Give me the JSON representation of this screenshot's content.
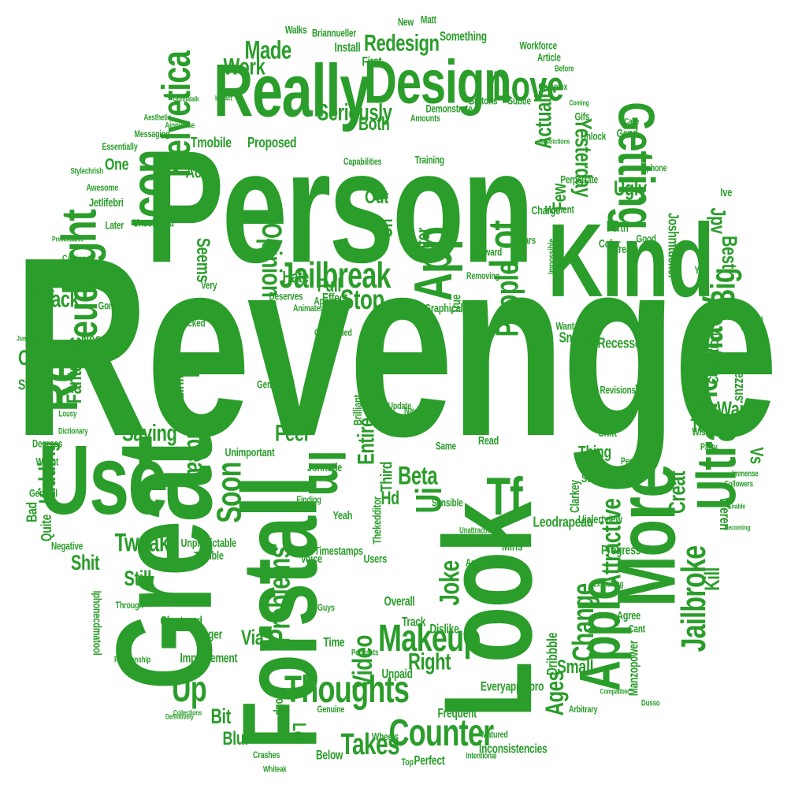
{
  "colors": {
    "word": "#2a9d2a",
    "background": "#ffffff"
  },
  "words": [
    {
      "text": "Revenge",
      "size": 240,
      "rot": 0
    },
    {
      "text": "Person",
      "size": 150,
      "rot": 0
    },
    {
      "text": "Great",
      "size": 128,
      "rot": -90
    },
    {
      "text": "Look",
      "size": 118,
      "rot": -90
    },
    {
      "text": "Forstall",
      "size": 100,
      "rot": -90
    },
    {
      "text": "Kind",
      "size": 98,
      "rot": 0
    },
    {
      "text": "Use",
      "size": 92,
      "rot": 0
    },
    {
      "text": "More",
      "size": 78,
      "rot": -90
    },
    {
      "text": "Really",
      "size": 70,
      "rot": 0
    },
    {
      "text": "Design",
      "size": 58,
      "rot": 0
    },
    {
      "text": "Apple",
      "size": 54,
      "rot": -90
    },
    {
      "text": "Ultra",
      "size": 52,
      "rot": -90
    },
    {
      "text": "Getting",
      "size": 48,
      "rot": 90
    },
    {
      "text": "App",
      "size": 50,
      "rot": -90
    },
    {
      "text": "Re",
      "size": 52,
      "rot": -90
    },
    {
      "text": "Icon",
      "size": 50,
      "rot": -90
    },
    {
      "text": "Im",
      "size": 50,
      "rot": 90
    },
    {
      "text": "Tf",
      "size": 50,
      "rot": 0
    },
    {
      "text": "Light",
      "size": 46,
      "rot": -90
    },
    {
      "text": "Lot",
      "size": 40,
      "rot": -90
    },
    {
      "text": "Love",
      "size": 40,
      "rot": 0
    },
    {
      "text": "Helvetica",
      "size": 38,
      "rot": -90
    },
    {
      "text": "Neue",
      "size": 40,
      "rot": -90
    },
    {
      "text": "Makeup",
      "size": 36,
      "rot": 0
    },
    {
      "text": "Thoughts",
      "size": 36,
      "rot": 0
    },
    {
      "text": "Counter",
      "size": 36,
      "rot": 0
    },
    {
      "text": "Jailbreak",
      "size": 34,
      "rot": 0
    },
    {
      "text": "Macy",
      "size": 36,
      "rot": -90
    },
    {
      "text": "Here",
      "size": 32,
      "rot": -90
    },
    {
      "text": "Big",
      "size": 32,
      "rot": -90
    },
    {
      "text": "Jailbroke",
      "size": 32,
      "rot": -90
    },
    {
      "text": "Ii",
      "size": 40,
      "rot": -90
    },
    {
      "text": "Ui",
      "size": 34,
      "rot": -90
    },
    {
      "text": "Soon",
      "size": 32,
      "rot": -90
    },
    {
      "text": "Up",
      "size": 34,
      "rot": 0
    },
    {
      "text": "People",
      "size": 30,
      "rot": -90
    },
    {
      "text": "Change",
      "size": 28,
      "rot": -90
    },
    {
      "text": "Problems",
      "size": 28,
      "rot": -90
    },
    {
      "text": "Takes",
      "size": 28,
      "rot": 0
    },
    {
      "text": "Joke",
      "size": 26,
      "rot": -90
    },
    {
      "text": "Video",
      "size": 26,
      "rot": -90
    },
    {
      "text": "Stop",
      "size": 26,
      "rot": 0
    },
    {
      "text": "Opinion",
      "size": 26,
      "rot": 90
    },
    {
      "text": "Attractive",
      "size": 26,
      "rot": -90
    },
    {
      "text": "Tweak",
      "size": 24,
      "rot": 0
    },
    {
      "text": "Idea",
      "size": 26,
      "rot": 90
    },
    {
      "text": "Ages",
      "size": 24,
      "rot": -90
    },
    {
      "text": "Beta",
      "size": 24,
      "rot": 0
    },
    {
      "text": "Right",
      "size": 22,
      "rot": 0
    },
    {
      "text": "Made",
      "size": 24,
      "rot": 0
    },
    {
      "text": "Yesterday",
      "size": 22,
      "rot": 90
    },
    {
      "text": "Actually",
      "size": 22,
      "rot": -90
    },
    {
      "text": "Saying",
      "size": 22,
      "rot": 0
    },
    {
      "text": "Kidding",
      "size": 22,
      "rot": -90
    },
    {
      "text": "Fantastic",
      "size": 20,
      "rot": -90
    },
    {
      "text": "Seriously",
      "size": 22,
      "rot": 0
    },
    {
      "text": "Back",
      "size": 22,
      "rot": 0
    },
    {
      "text": "Redesign",
      "size": 22,
      "rot": 0
    },
    {
      "text": "Work",
      "size": 22,
      "rot": 0
    },
    {
      "text": "Now",
      "size": 22,
      "rot": -90
    },
    {
      "text": "Feel",
      "size": 22,
      "rot": 0
    },
    {
      "text": "Creat",
      "size": 22,
      "rot": -90
    },
    {
      "text": "Best",
      "size": 20,
      "rot": 90
    },
    {
      "text": "Entire",
      "size": 22,
      "rot": -90
    },
    {
      "text": "Still",
      "size": 20,
      "rot": 0
    },
    {
      "text": "Bit",
      "size": 20,
      "rot": 0
    },
    {
      "text": "Via",
      "size": 20,
      "rot": 0
    },
    {
      "text": "Kill",
      "size": 20,
      "rot": -90
    },
    {
      "text": "Wait",
      "size": 20,
      "rot": 0
    },
    {
      "text": "Ugly",
      "size": 20,
      "rot": 0
    },
    {
      "text": "Jpv",
      "size": 20,
      "rot": 90
    },
    {
      "text": "Omg",
      "size": 20,
      "rot": 0
    },
    {
      "text": "Shit",
      "size": 20,
      "rot": 0
    },
    {
      "text": "Few",
      "size": 18,
      "rot": -90
    },
    {
      "text": "Full",
      "size": 18,
      "rot": 0
    },
    {
      "text": "Out",
      "size": 18,
      "rot": 0
    },
    {
      "text": "Filter",
      "size": 18,
      "rot": -90
    },
    {
      "text": "Seems",
      "size": 18,
      "rot": 90
    },
    {
      "text": "Both",
      "size": 18,
      "rot": 0
    },
    {
      "text": "Lol",
      "size": 18,
      "rot": 90
    },
    {
      "text": "Hd",
      "size": 18,
      "rot": 0
    },
    {
      "text": "Small",
      "size": 18,
      "rot": 0
    },
    {
      "text": "Blur",
      "size": 18,
      "rot": 0
    },
    {
      "text": "Vs",
      "size": 18,
      "rot": 90
    },
    {
      "text": "Oh",
      "size": 18,
      "rot": -90
    },
    {
      "text": "Link",
      "size": 16,
      "rot": -90
    },
    {
      "text": "Turn",
      "size": 18,
      "rot": 0
    },
    {
      "text": "Thing",
      "size": 16,
      "rot": 0
    },
    {
      "text": "Found",
      "size": 16,
      "rot": -90
    },
    {
      "text": "Hate",
      "size": 16,
      "rot": 0
    },
    {
      "text": "Went",
      "size": 16,
      "rot": 0
    },
    {
      "text": "Third",
      "size": 16,
      "rot": -90
    },
    {
      "text": "One",
      "size": 16,
      "rot": 0
    },
    {
      "text": "Act",
      "size": 16,
      "rot": 0
    },
    {
      "text": "Store",
      "size": 14,
      "rot": 0
    },
    {
      "text": "Quite",
      "size": 14,
      "rot": -90
    },
    {
      "text": "Bad",
      "size": 14,
      "rot": -90
    },
    {
      "text": "Neon",
      "size": 14,
      "rot": 0
    },
    {
      "text": "Proposed",
      "size": 14,
      "rot": 0
    },
    {
      "text": "Tmobile",
      "size": 14,
      "rot": 0
    },
    {
      "text": "Dribbble",
      "size": 14,
      "rot": -90
    },
    {
      "text": "Recessed",
      "size": 14,
      "rot": 0
    },
    {
      "text": "Smarter",
      "size": 14,
      "rot": 0
    },
    {
      "text": "Collection",
      "size": 14,
      "rot": -90
    },
    {
      "text": "Weren",
      "size": 14,
      "rot": 90
    },
    {
      "text": "Steezzus",
      "size": 14,
      "rot": 90
    },
    {
      "text": "Leodrapeau",
      "size": 14,
      "rot": 0
    },
    {
      "text": "Yep",
      "size": 14,
      "rot": 0
    },
    {
      "text": "Group",
      "size": 12,
      "rot": 90
    },
    {
      "text": "Below",
      "size": 12,
      "rot": 0
    },
    {
      "text": "Perfect",
      "size": 12,
      "rot": 0
    },
    {
      "text": "Frequent",
      "size": 12,
      "rot": 0
    },
    {
      "text": "Inconsistencies",
      "size": 12,
      "rot": 0
    },
    {
      "text": "Everyapplepro",
      "size": 12,
      "rot": 0
    },
    {
      "text": "Manzopower",
      "size": 12,
      "rot": -90
    },
    {
      "text": "Clarkey",
      "size": 12,
      "rot": -90
    },
    {
      "text": "Mins",
      "size": 12,
      "rot": 0
    },
    {
      "text": "Overall",
      "size": 12,
      "rot": 0
    },
    {
      "text": "Track",
      "size": 12,
      "rot": 0
    },
    {
      "text": "Dislike",
      "size": 12,
      "rot": 0
    },
    {
      "text": "Time",
      "size": 12,
      "rot": 0
    },
    {
      "text": "Unpaid",
      "size": 12,
      "rot": 0
    },
    {
      "text": "Improvement",
      "size": 12,
      "rot": 0
    },
    {
      "text": "Bigger",
      "size": 12,
      "rot": 0
    },
    {
      "text": "Clustered",
      "size": 12,
      "rot": 0
    },
    {
      "text": "Timestamps",
      "size": 11,
      "rot": 0
    },
    {
      "text": "Voice",
      "size": 11,
      "rot": 0
    },
    {
      "text": "Unpredictable",
      "size": 11,
      "rot": 0
    },
    {
      "text": "Terrible",
      "size": 11,
      "rot": 0
    },
    {
      "text": "Unimportant",
      "size": 11,
      "rot": 0
    },
    {
      "text": "Jonnotie",
      "size": 11,
      "rot": 0
    },
    {
      "text": "Yeah",
      "size": 11,
      "rot": 0
    },
    {
      "text": "Thekedditor",
      "size": 11,
      "rot": -90
    },
    {
      "text": "Iphonecdmatool",
      "size": 11,
      "rot": 90
    },
    {
      "text": "Negative",
      "size": 10,
      "rot": 0
    },
    {
      "text": "General",
      "size": 10,
      "rot": 0
    },
    {
      "text": "Wasnt",
      "size": 10,
      "rot": 0
    },
    {
      "text": "Degrees",
      "size": 10,
      "rot": 0
    },
    {
      "text": "Gonna",
      "size": 10,
      "rot": 0
    },
    {
      "text": "Leave",
      "size": 10,
      "rot": 0
    },
    {
      "text": "Hacked",
      "size": 10,
      "rot": 0
    },
    {
      "text": "Finally",
      "size": 10,
      "rot": 0
    },
    {
      "text": "Very",
      "size": 10,
      "rot": 0
    },
    {
      "text": "Carrier",
      "size": 9,
      "rot": 0
    },
    {
      "text": "Jetlifebri",
      "size": 11,
      "rot": 0
    },
    {
      "text": "Later",
      "size": 10,
      "rot": 0
    },
    {
      "text": "Unsolicited",
      "size": 10,
      "rot": 0
    },
    {
      "text": "Awesome",
      "size": 9,
      "rot": 0
    },
    {
      "text": "Stylechrish",
      "size": 8,
      "rot": 0
    },
    {
      "text": "Essentially",
      "size": 9,
      "rot": 0
    },
    {
      "text": "Messaging",
      "size": 9,
      "rot": 0
    },
    {
      "text": "Aesthetic",
      "size": 8,
      "rot": 0
    },
    {
      "text": "Aiomoose",
      "size": 8,
      "rot": 0
    },
    {
      "text": "Walks",
      "size": 10,
      "rot": 0
    },
    {
      "text": "Briannueller",
      "size": 10,
      "rot": 0
    },
    {
      "text": "Install",
      "size": 12,
      "rot": 0
    },
    {
      "text": "New",
      "size": 10,
      "rot": 0
    },
    {
      "text": "Matt",
      "size": 10,
      "rot": 0
    },
    {
      "text": "Something",
      "size": 12,
      "rot": 0
    },
    {
      "text": "Workforce",
      "size": 10,
      "rot": 0
    },
    {
      "text": "Article",
      "size": 10,
      "rot": 0
    },
    {
      "text": "First",
      "size": 12,
      "rot": 0
    },
    {
      "text": "Buttons",
      "size": 10,
      "rot": 0
    },
    {
      "text": "Subtle",
      "size": 10,
      "rot": 0
    },
    {
      "text": "Demonstrate",
      "size": 10,
      "rot": 0
    },
    {
      "text": "Amounts",
      "size": 9,
      "rot": 0
    },
    {
      "text": "Complex",
      "size": 9,
      "rot": 0
    },
    {
      "text": "Gifs",
      "size": 10,
      "rot": 0
    },
    {
      "text": "Unlock",
      "size": 10,
      "rot": 0
    },
    {
      "text": "Gend",
      "size": 11,
      "rot": 0
    },
    {
      "text": "Perpetrate",
      "size": 10,
      "rot": 0
    },
    {
      "text": "Iphone",
      "size": 9,
      "rot": 0
    },
    {
      "text": "Training",
      "size": 10,
      "rot": 0
    },
    {
      "text": "Capabilities",
      "size": 9,
      "rot": 0
    },
    {
      "text": "Charge",
      "size": 11,
      "rot": 0
    },
    {
      "text": "Moment",
      "size": 10,
      "rot": 0
    },
    {
      "text": "Forth",
      "size": 11,
      "rot": 0
    },
    {
      "text": "Bars",
      "size": 10,
      "rot": 0
    },
    {
      "text": "Impossible",
      "size": 9,
      "rot": -90
    },
    {
      "text": "Color",
      "size": 11,
      "rot": 0
    },
    {
      "text": "Already",
      "size": 11,
      "rot": 0
    },
    {
      "text": "Good",
      "size": 10,
      "rot": 0
    },
    {
      "text": "Ive",
      "size": 11,
      "rot": 0
    },
    {
      "text": "Yes",
      "size": 10,
      "rot": 0
    },
    {
      "text": "Though",
      "size": 8,
      "rot": 0
    },
    {
      "text": "Attention",
      "size": 8,
      "rot": 0
    },
    {
      "text": "Revert",
      "size": 9,
      "rot": 0
    },
    {
      "text": "Forward",
      "size": 10,
      "rot": 0
    },
    {
      "text": "Removing",
      "size": 9,
      "rot": 0
    },
    {
      "text": "Appear",
      "size": 10,
      "rot": 0
    },
    {
      "text": "Deserves",
      "size": 10,
      "rot": 0
    },
    {
      "text": "Effect",
      "size": 12,
      "rot": 0
    },
    {
      "text": "Animated",
      "size": 9,
      "rot": 0
    },
    {
      "text": "True",
      "size": 12,
      "rot": -90
    },
    {
      "text": "Graphical",
      "size": 11,
      "rot": 0
    },
    {
      "text": "Tweet",
      "size": 11,
      "rot": 0
    },
    {
      "text": "Want",
      "size": 10,
      "rot": 0
    },
    {
      "text": "Overloaded",
      "size": 9,
      "rot": 0
    },
    {
      "text": "Brilliant",
      "size": 11,
      "rot": -90
    },
    {
      "text": "Update",
      "size": 9,
      "rot": 0
    },
    {
      "text": "Navigation",
      "size": 9,
      "rot": 0
    },
    {
      "text": "Revisions",
      "size": 10,
      "rot": 0
    },
    {
      "text": "Wtf",
      "size": 12,
      "rot": 0
    },
    {
      "text": "Much",
      "size": 11,
      "rot": 0
    },
    {
      "text": "Shift",
      "size": 11,
      "rot": 0
    },
    {
      "text": "Party",
      "size": 9,
      "rot": 0
    },
    {
      "text": "Wish",
      "size": 10,
      "rot": 0
    },
    {
      "text": "Personally",
      "size": 9,
      "rot": 0
    },
    {
      "text": "Immense",
      "size": 8,
      "rot": 0
    },
    {
      "text": "Starting",
      "size": 11,
      "rot": 0
    },
    {
      "text": "Read",
      "size": 11,
      "rot": 0
    },
    {
      "text": "Same",
      "size": 10,
      "rot": 0
    },
    {
      "text": "Sensible",
      "size": 10,
      "rot": 0
    },
    {
      "text": "Uialertview",
      "size": 11,
      "rot": 0
    },
    {
      "text": "Followers",
      "size": 8,
      "rot": 0
    },
    {
      "text": "Enable",
      "size": 7,
      "rot": 0
    },
    {
      "text": "Becoming",
      "size": 7,
      "rot": 0
    },
    {
      "text": "Progress",
      "size": 12,
      "rot": 0
    },
    {
      "text": "Apparently",
      "size": 10,
      "rot": 0
    },
    {
      "text": "Unattractive",
      "size": 8,
      "rot": 0
    },
    {
      "text": "Users",
      "size": 11,
      "rot": 0
    },
    {
      "text": "Finding",
      "size": 9,
      "rot": 0
    },
    {
      "text": "Explaining",
      "size": 8,
      "rot": 0
    },
    {
      "text": "Agree",
      "size": 11,
      "rot": 0
    },
    {
      "text": "Cant",
      "size": 10,
      "rot": 0
    },
    {
      "text": "Compatible",
      "size": 7,
      "rot": 0
    },
    {
      "text": "Arbitrary",
      "size": 9,
      "rot": 0
    },
    {
      "text": "Dusso",
      "size": 8,
      "rot": 0
    },
    {
      "text": "Matured",
      "size": 9,
      "rot": 0
    },
    {
      "text": "Intentional",
      "size": 8,
      "rot": 0
    },
    {
      "text": "Wheels",
      "size": 10,
      "rot": 0
    },
    {
      "text": "Top",
      "size": 9,
      "rot": 0
    },
    {
      "text": "Genuine",
      "size": 9,
      "rot": 0
    },
    {
      "text": "Crashes",
      "size": 9,
      "rot": 0
    },
    {
      "text": "Whiteak",
      "size": 8,
      "rot": 0
    },
    {
      "text": "Podcasts",
      "size": 8,
      "rot": 0
    },
    {
      "text": "Guys",
      "size": 9,
      "rot": 0
    },
    {
      "text": "Through",
      "size": 9,
      "rot": 0
    },
    {
      "text": "Relationship",
      "size": 8,
      "rot": 0
    },
    {
      "text": "Definitively",
      "size": 7,
      "rot": 0
    },
    {
      "text": "Collections",
      "size": 7,
      "rot": 0
    },
    {
      "text": "Dictionary",
      "size": 8,
      "rot": 0
    },
    {
      "text": "Lousy",
      "size": 8,
      "rot": 0
    },
    {
      "text": "Gemmel",
      "size": 10,
      "rot": 0
    },
    {
      "text": "Jumping",
      "size": 7,
      "rot": 0
    },
    {
      "text": "Preventative",
      "size": 7,
      "rot": 0
    },
    {
      "text": "Joshmtucker",
      "size": 14,
      "rot": 90
    },
    {
      "text": "Before",
      "size": 8,
      "rot": 0
    },
    {
      "text": "Coming",
      "size": 7,
      "rot": 0
    },
    {
      "text": "Cake",
      "size": 8,
      "rot": 0
    },
    {
      "text": "Restrictions",
      "size": 7,
      "rot": 0
    },
    {
      "text": "Impact",
      "size": 7,
      "rot": 0
    },
    {
      "text": "Gonnatalk",
      "size": 7,
      "rot": 0
    }
  ]
}
